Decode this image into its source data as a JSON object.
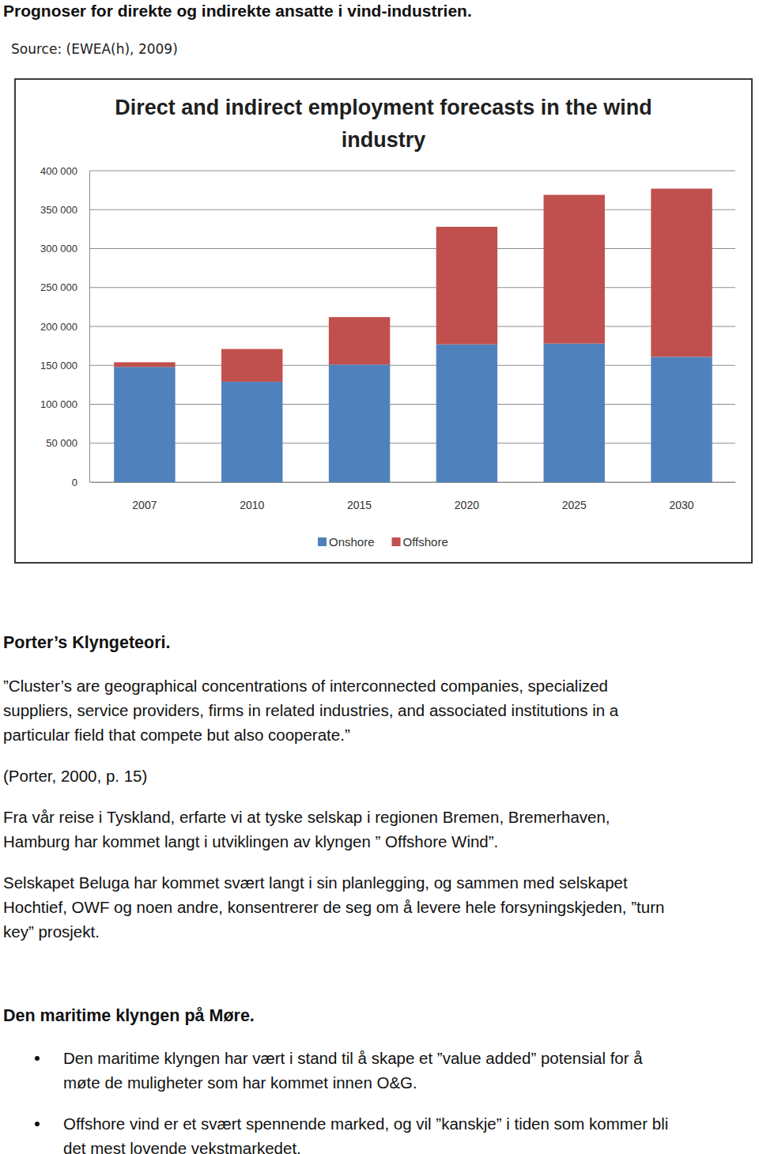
{
  "header": {
    "title": "Prognoser for direkte og indirekte ansatte i vind-industrien.",
    "source": "Source:  (EWEA(h), 2009)"
  },
  "chart_data": {
    "type": "bar",
    "title": "Direct and indirect employment forecasts in the wind industry",
    "categories": [
      "2007",
      "2010",
      "2015",
      "2020",
      "2025",
      "2030"
    ],
    "series": [
      {
        "name": "Onshore",
        "color": "#4f81bd",
        "values": [
          148000,
          129000,
          151000,
          177000,
          178000,
          161000
        ]
      },
      {
        "name": "Offshore",
        "color": "#c0504d",
        "values": [
          6000,
          42000,
          61000,
          151000,
          191000,
          216000
        ]
      }
    ],
    "stacked": true,
    "ylim": [
      0,
      400000
    ],
    "yticks": [
      0,
      {
        "value": 50000,
        "label": "50 000"
      },
      {
        "value": 100000,
        "label": "100 000"
      },
      {
        "value": 150000,
        "label": "150 000"
      },
      {
        "value": 200000,
        "label": "200 000"
      },
      {
        "value": 250000,
        "label": "250 000"
      },
      {
        "value": 300000,
        "label": "300 000"
      },
      {
        "value": 350000,
        "label": "350 000"
      },
      {
        "value": 400000,
        "label": "400 000"
      }
    ],
    "grid": true,
    "legend": "bottom"
  },
  "sections": [
    {
      "heading": "Porter’s Klyngeteori.",
      "paragraphs": [
        {
          "lines": [
            "”Cluster’s are geographical concentrations of interconnected companies, specialized",
            "suppliers, service providers, firms in related industries, and associated institutions in a",
            "particular field that compete but also cooperate.”"
          ]
        },
        {
          "lines": [
            "(Porter, 2000, p. 15)"
          ]
        },
        {
          "lines": [
            "Fra vår reise i Tyskland, erfarte vi at tyske selskap i regionen Bremen, Bremerhaven,",
            "Hamburg har kommet langt i utviklingen av klyngen ” Offshore Wind”."
          ]
        },
        {
          "lines": [
            "Selskapet Beluga har kommet svært langt i sin planlegging, og sammen med selskapet",
            "Hochtief, OWF og noen andre, konsentrerer de seg om å levere hele forsyningskjeden, ”turn",
            "key” prosjekt."
          ]
        }
      ]
    },
    {
      "heading": "Den maritime klyngen på Møre.",
      "bullets": [
        {
          "lines": [
            "Den maritime klyngen har vært i stand til å skape et ”value added” potensial for å",
            "møte de muligheter som har kommet innen O&G."
          ]
        },
        {
          "lines": [
            "Offshore vind er et svært spennende marked, og vil ”kanskje” i tiden som kommer bli",
            "det mest lovende vekstmarkedet."
          ]
        }
      ]
    }
  ]
}
